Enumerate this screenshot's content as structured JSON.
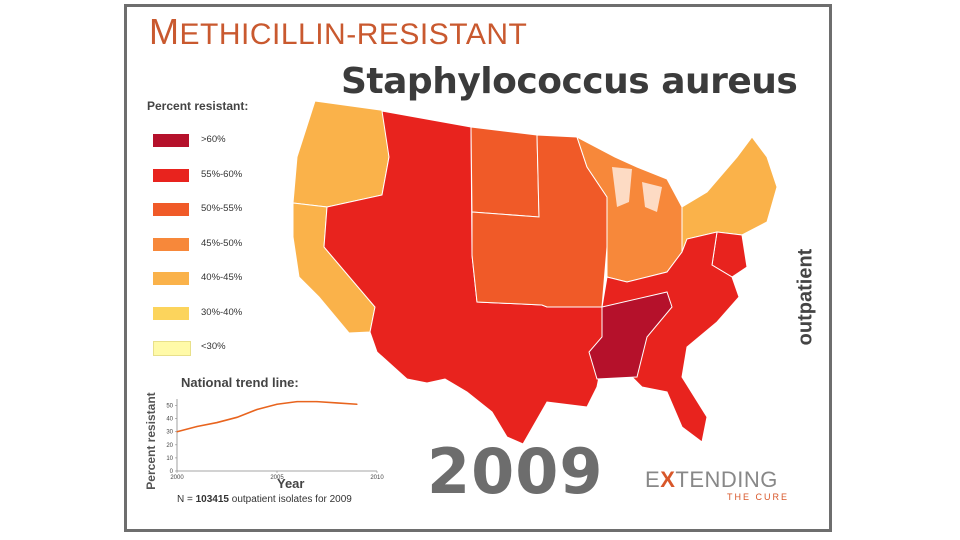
{
  "header": {
    "title_line1_initial": "M",
    "title_line1_rest": "ETHICILLIN-RESISTANT",
    "title_line2": "Staphylococcus aureus"
  },
  "legend": {
    "title": "Percent resistant:",
    "items": [
      {
        "label": ">60%",
        "color": "#b5112b"
      },
      {
        "label": "55%-60%",
        "color": "#e8231e"
      },
      {
        "label": "50%-55%",
        "color": "#f05a28"
      },
      {
        "label": "45%-50%",
        "color": "#f7883a"
      },
      {
        "label": "40%-45%",
        "color": "#fab24a"
      },
      {
        "label": "30%-40%",
        "color": "#fcd45c"
      },
      {
        "label": "<30%",
        "color": "#fffaa8"
      }
    ]
  },
  "map": {
    "region_classes": [
      {
        "region": "pacific-northwest",
        "category": "40%-45%"
      },
      {
        "region": "california",
        "category": "40%-45%"
      },
      {
        "region": "west-and-southwest",
        "category": "55%-60%"
      },
      {
        "region": "northern-plains",
        "category": "50%-55%"
      },
      {
        "region": "central-plains",
        "category": "50%-55%"
      },
      {
        "region": "great-lakes",
        "category": "45%-50%"
      },
      {
        "region": "northeast",
        "category": "40%-45%"
      },
      {
        "region": "mid-atlantic",
        "category": "55%-60%"
      },
      {
        "region": "southeast",
        "category": "55%-60%"
      },
      {
        "region": "deep-south-tennessee",
        "category": ">60%"
      }
    ]
  },
  "side_label": "outpatient",
  "trend": {
    "title": "National trend line:",
    "ylabel": "Percent resistant",
    "xlabel": "Year",
    "note_prefix": "N = ",
    "note_count": "103415",
    "note_suffix": " outpatient isolates for 2009"
  },
  "year": "2009",
  "logo": {
    "pre": "E",
    "x": "X",
    "post": "TENDING",
    "sub": "THE CURE"
  },
  "chart_data": {
    "type": "line",
    "title": "National trend line:",
    "xlabel": "Year",
    "ylabel": "Percent resistant",
    "x_ticks": [
      "2000",
      "2005",
      "2010"
    ],
    "y_ticks": [
      "0",
      "10",
      "20",
      "30",
      "40",
      "50"
    ],
    "xlim": [
      2000,
      2010
    ],
    "ylim": [
      0,
      55
    ],
    "x": [
      2000,
      2001,
      2002,
      2003,
      2004,
      2005,
      2006,
      2007,
      2008,
      2009
    ],
    "series": [
      {
        "values": [
          30,
          34,
          37,
          41,
          47,
          51,
          53,
          53,
          52,
          51
        ],
        "color": "#e8641e"
      }
    ]
  }
}
